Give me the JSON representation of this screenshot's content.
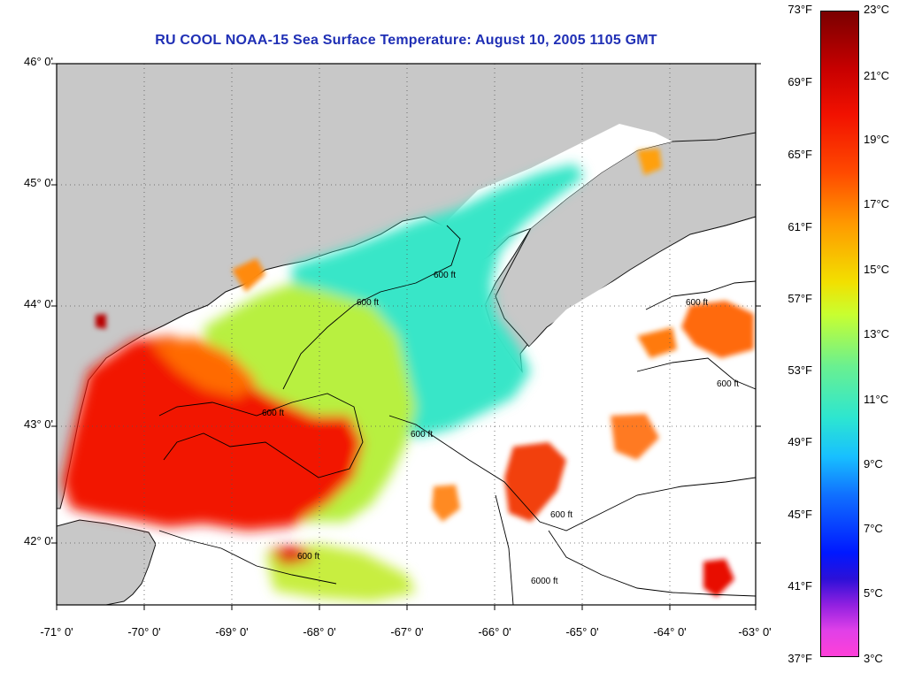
{
  "title": "RU COOL  NOAA-15  Sea Surface Temperature:  August 10, 2005 1105 GMT",
  "map": {
    "latitude_labels": [
      "46° 0'",
      "45° 0'",
      "44° 0'",
      "43° 0'",
      "42° 0'"
    ],
    "longitude_labels": [
      "-71° 0'",
      "-70° 0'",
      "-69° 0'",
      "-68° 0'",
      "-67° 0'",
      "-66° 0'",
      "-65° 0'",
      "-64° 0'",
      "-63° 0'"
    ],
    "lat_range": [
      41.5,
      46.1
    ],
    "lon_range": [
      -71,
      -63
    ],
    "contour_label": "600 ft",
    "contour_label_deep": "6000 ft",
    "land_color": "#c8c8c8",
    "cloud_color": "#ffffff"
  },
  "colorbar": {
    "fahrenheit_labels": [
      "73°F",
      "69°F",
      "65°F",
      "61°F",
      "57°F",
      "53°F",
      "49°F",
      "45°F",
      "41°F",
      "37°F"
    ],
    "celsius_labels": [
      "23°C",
      "21°C",
      "19°C",
      "17°C",
      "15°C",
      "13°C",
      "11°C",
      "9°C",
      "7°C",
      "5°C",
      "3°C"
    ],
    "f_range": [
      37,
      73
    ],
    "c_range": [
      3,
      23
    ]
  }
}
